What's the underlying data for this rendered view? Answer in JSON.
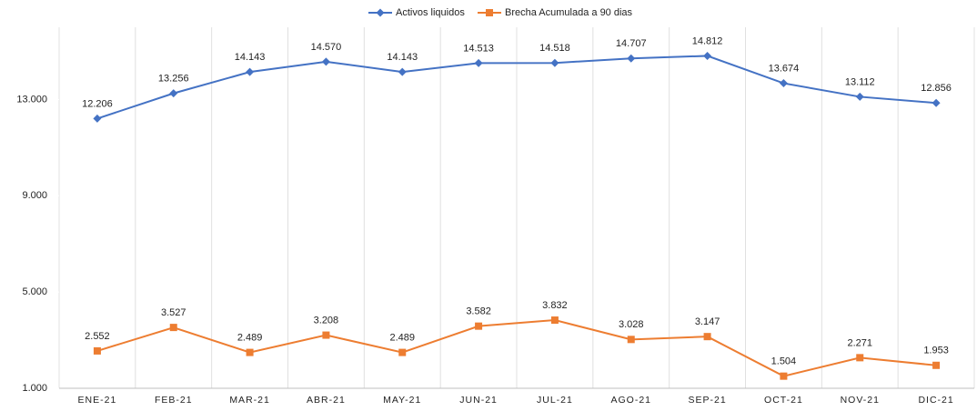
{
  "chart_data": {
    "type": "line",
    "categories": [
      "ENE-21",
      "FEB-21",
      "MAR-21",
      "ABR-21",
      "MAY-21",
      "JUN-21",
      "JUL-21",
      "AGO-21",
      "SEP-21",
      "OCT-21",
      "NOV-21",
      "DIC-21"
    ],
    "series": [
      {
        "name": "Activos liquidos",
        "color": "#4472c4",
        "marker": "diamond",
        "values": [
          12206,
          13256,
          14143,
          14570,
          14143,
          14513,
          14518,
          14707,
          14812,
          13674,
          13112,
          12856
        ],
        "value_labels": [
          "12.206",
          "13.256",
          "14.143",
          "14.570",
          "14.143",
          "14.513",
          "14.518",
          "14.707",
          "14.812",
          "13.674",
          "13.112",
          "12.856"
        ]
      },
      {
        "name": "Brecha Acumulada a 90 dias",
        "color": "#ed7d31",
        "marker": "square",
        "values": [
          2552,
          3527,
          2489,
          3208,
          2489,
          3582,
          3832,
          3028,
          3147,
          1504,
          2271,
          1953
        ],
        "value_labels": [
          "2.552",
          "3.527",
          "2.489",
          "3.208",
          "2.489",
          "3.582",
          "3.832",
          "3.028",
          "3.147",
          "1.504",
          "2.271",
          "1.953"
        ]
      }
    ],
    "ylim": [
      1000,
      16000
    ],
    "yticks": [
      {
        "value": 1000,
        "label": "1.000"
      },
      {
        "value": 5000,
        "label": "5.000"
      },
      {
        "value": 9000,
        "label": "9.000"
      },
      {
        "value": 13000,
        "label": "13.000"
      }
    ],
    "legend": "top"
  }
}
